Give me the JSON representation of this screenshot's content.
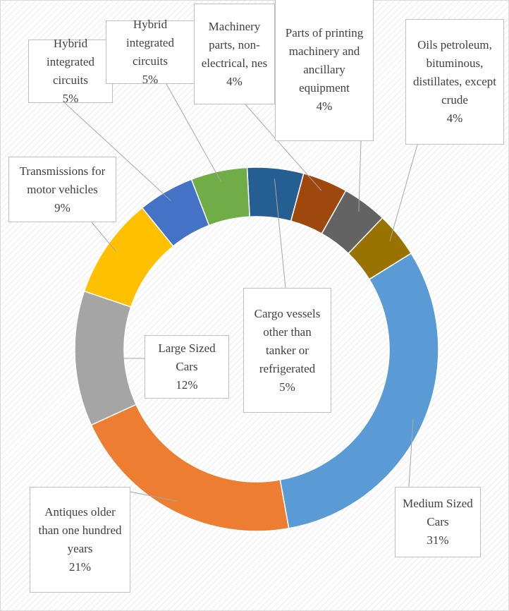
{
  "chart_data": {
    "type": "donut",
    "categories": [
      "Cargo vessels other than tanker or refrigerated",
      "Machinery parts, non-electrical, nes",
      "Parts of printing machinery and ancillary equipment",
      "Oils petroleum, bituminous, distillates, except crude",
      "Medium Sized Cars",
      "Antiques older than one hundred years",
      "Large Sized Cars",
      "Transmissions for motor vehicles",
      "Hybrid integrated circuits",
      "Hybrid integrated circuits"
    ],
    "values": [
      5,
      4,
      4,
      4,
      31,
      21,
      12,
      9,
      5,
      5
    ],
    "value_labels": [
      "5%",
      "4%",
      "4%",
      "4%",
      "31%",
      "21%",
      "12%",
      "9%",
      "5%",
      "5%"
    ],
    "colors": [
      "#255e91",
      "#9e480e",
      "#636363",
      "#997300",
      "#5b9bd5",
      "#ed7d31",
      "#a5a5a5",
      "#ffc000",
      "#4472c4",
      "#70ad47"
    ]
  }
}
